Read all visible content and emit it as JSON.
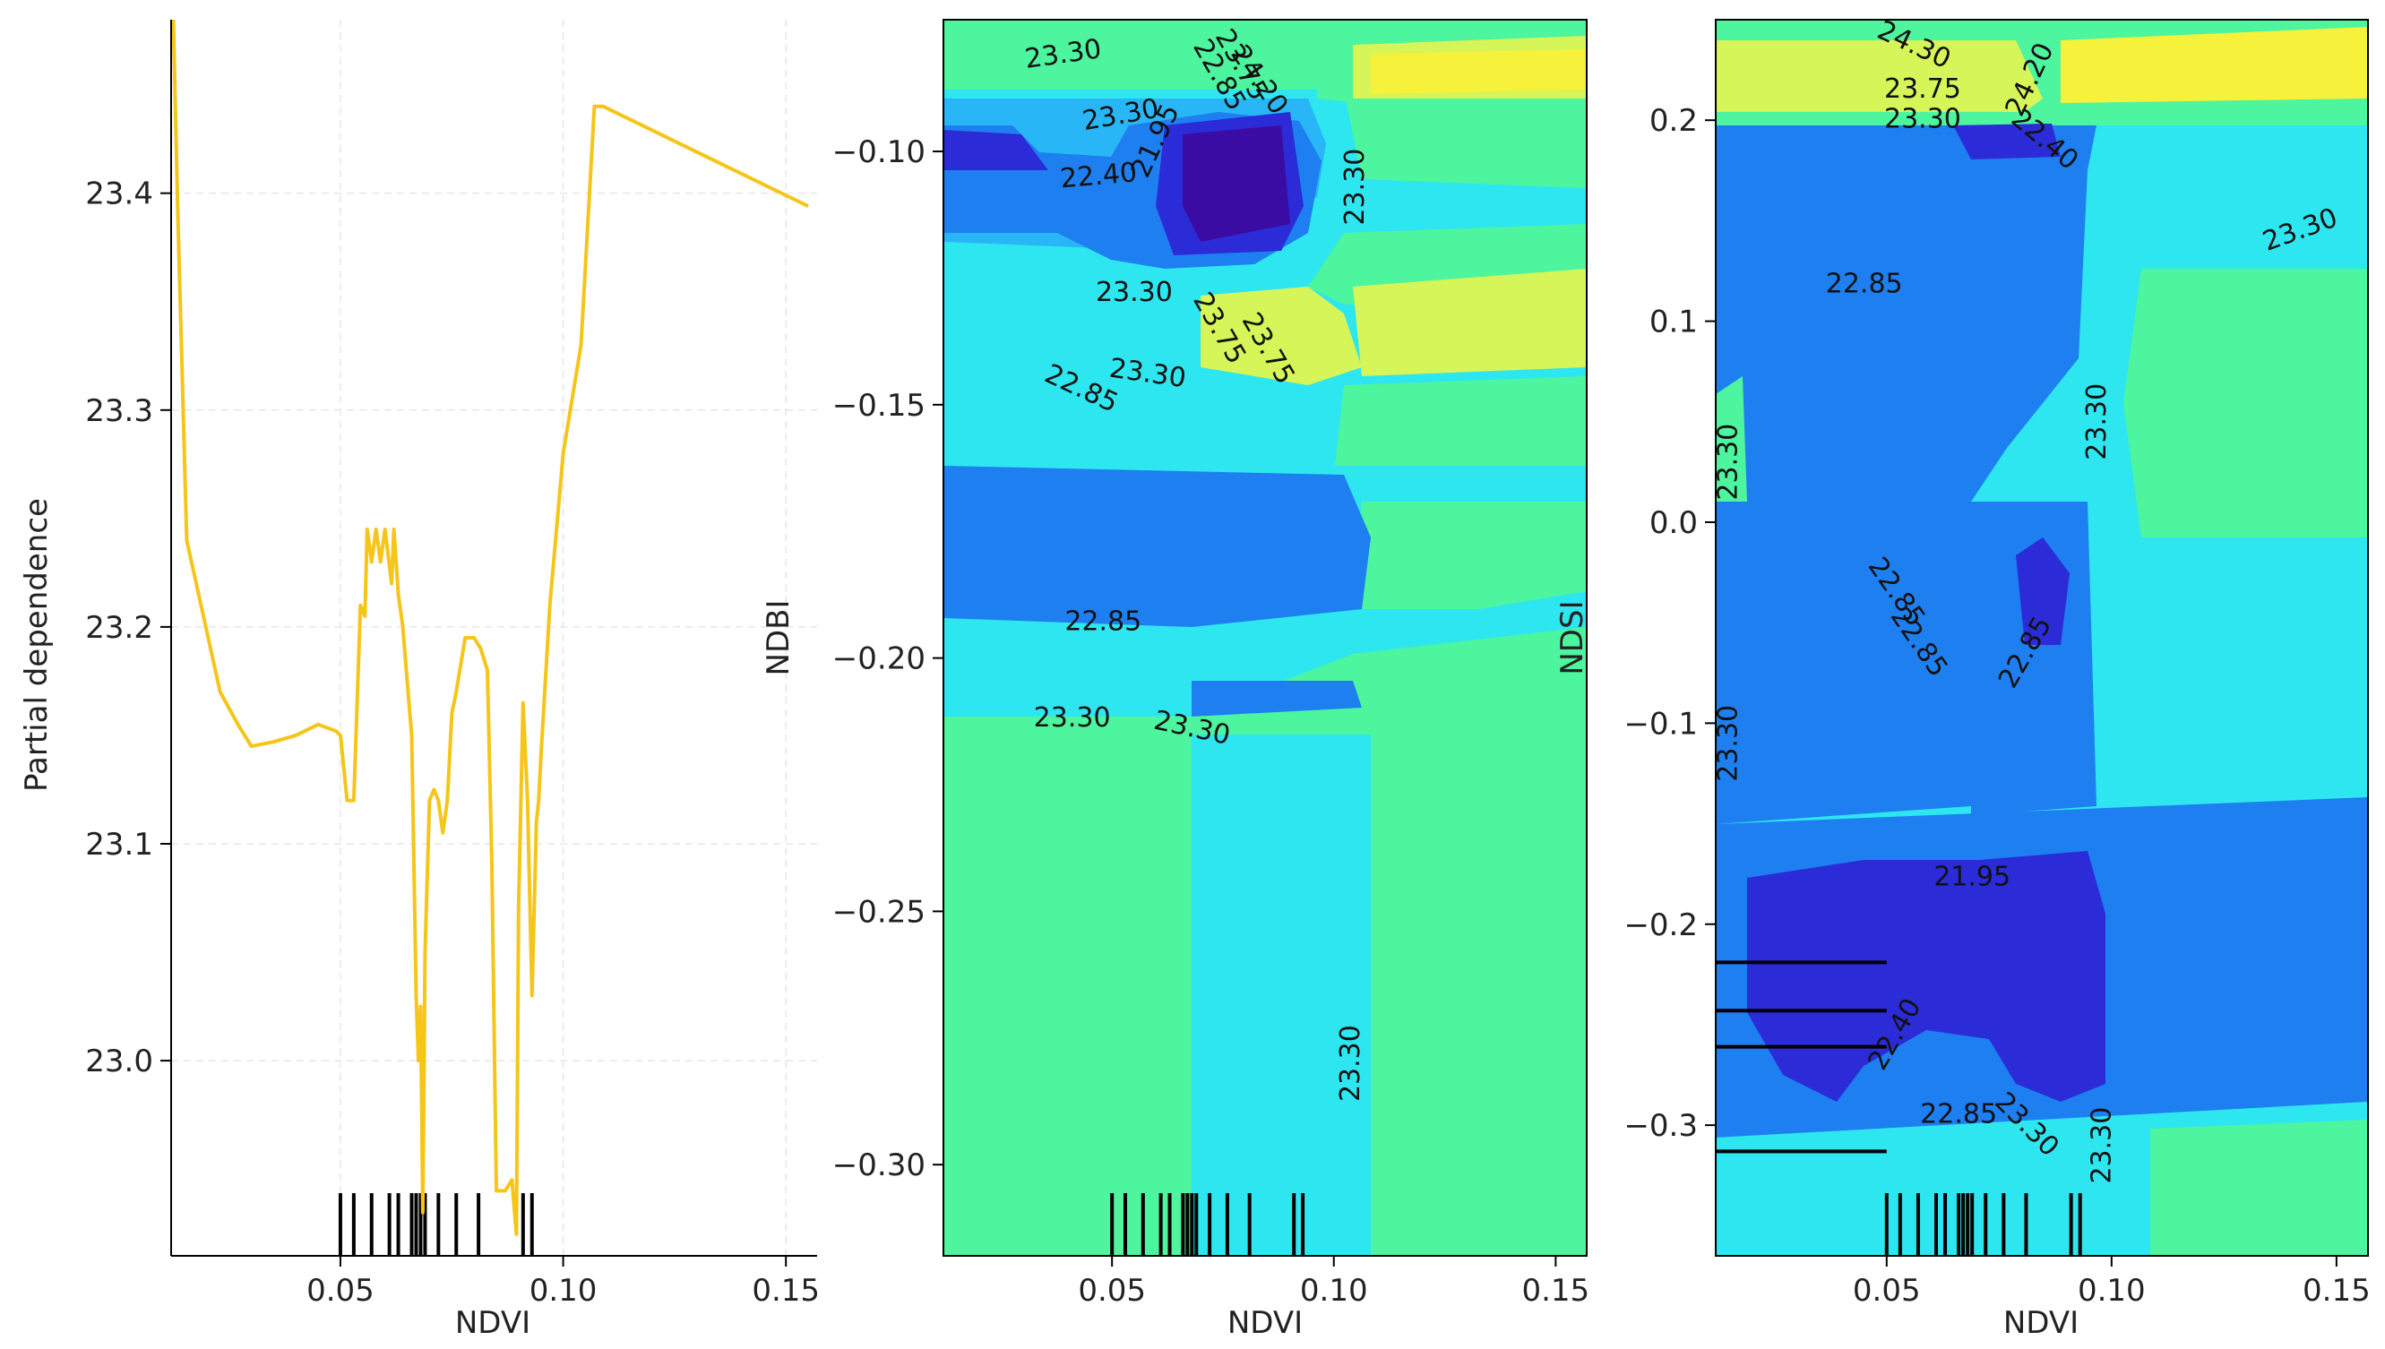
{
  "chart_data": [
    {
      "type": "line",
      "xlabel": "NDVI",
      "ylabel": "Partial dependence",
      "xlim": [
        0.012,
        0.157
      ],
      "ylim": [
        22.91,
        23.48
      ],
      "xticks": [
        0.05,
        0.1,
        0.15
      ],
      "xtick_labels": [
        "0.05",
        "0.10",
        "0.15"
      ],
      "yticks": [
        23.0,
        23.1,
        23.2,
        23.3,
        23.4
      ],
      "ytick_labels": [
        "23.0",
        "23.1",
        "23.2",
        "23.3",
        "23.4"
      ],
      "grid": true,
      "line_color": "#f5c518",
      "x": [
        0.0125,
        0.0135,
        0.0155,
        0.023,
        0.027,
        0.03,
        0.035,
        0.04,
        0.045,
        0.049,
        0.05,
        0.0515,
        0.053,
        0.0545,
        0.0555,
        0.056,
        0.057,
        0.058,
        0.059,
        0.06,
        0.0615,
        0.062,
        0.0625,
        0.063,
        0.064,
        0.065,
        0.066,
        0.067,
        0.0675,
        0.068,
        0.0685,
        0.069,
        0.07,
        0.071,
        0.072,
        0.073,
        0.074,
        0.075,
        0.076,
        0.078,
        0.08,
        0.0815,
        0.083,
        0.084,
        0.085,
        0.087,
        0.0885,
        0.0895,
        0.09,
        0.091,
        0.092,
        0.093,
        0.094,
        0.0945,
        0.095,
        0.097,
        0.1,
        0.104,
        0.107,
        0.109,
        0.155
      ],
      "y": [
        23.48,
        23.39,
        23.24,
        23.17,
        23.155,
        23.145,
        23.147,
        23.15,
        23.155,
        23.152,
        23.15,
        23.12,
        23.12,
        23.21,
        23.205,
        23.245,
        23.23,
        23.245,
        23.23,
        23.245,
        23.22,
        23.245,
        23.23,
        23.215,
        23.2,
        23.175,
        23.15,
        23.03,
        23.0,
        23.025,
        22.93,
        23.05,
        23.12,
        23.125,
        23.12,
        23.105,
        23.12,
        23.16,
        23.17,
        23.195,
        23.195,
        23.19,
        23.18,
        23.09,
        22.94,
        22.94,
        22.945,
        22.92,
        23.07,
        23.165,
        23.12,
        23.03,
        23.11,
        23.12,
        23.14,
        23.21,
        23.28,
        23.33,
        23.44,
        23.44,
        23.394
      ],
      "rug_x": [
        0.05,
        0.053,
        0.057,
        0.061,
        0.063,
        0.066,
        0.067,
        0.068,
        0.069,
        0.072,
        0.076,
        0.081,
        0.091,
        0.093
      ]
    },
    {
      "type": "heatmap",
      "xlabel": "NDVI",
      "ylabel": "NDBI",
      "xlim": [
        0.012,
        0.157
      ],
      "ylim": [
        -0.318,
        -0.074
      ],
      "xticks": [
        0.05,
        0.1,
        0.15
      ],
      "xtick_labels": [
        "0.05",
        "0.10",
        "0.15"
      ],
      "yticks": [
        -0.1,
        -0.15,
        -0.2,
        -0.25,
        -0.3
      ],
      "ytick_labels": [
        "−0.10",
        "−0.15",
        "−0.20",
        "−0.25",
        "−0.30"
      ],
      "contour_labels": [
        {
          "text": "23.30",
          "x": 0.039,
          "y": -0.081,
          "angle": -8
        },
        {
          "text": "24.20",
          "x": 0.083,
          "y": -0.086,
          "angle": 55
        },
        {
          "text": "23.75",
          "x": 0.079,
          "y": -0.083,
          "angle": 60
        },
        {
          "text": "22.85",
          "x": 0.074,
          "y": -0.085,
          "angle": 60
        },
        {
          "text": "23.30",
          "x": 0.052,
          "y": -0.093,
          "angle": -10
        },
        {
          "text": "21.95",
          "x": 0.06,
          "y": -0.098,
          "angle": -65
        },
        {
          "text": "22.40",
          "x": 0.047,
          "y": -0.105,
          "angle": -5
        },
        {
          "text": "23.30",
          "x": 0.105,
          "y": -0.107,
          "angle": -90
        },
        {
          "text": "23.30",
          "x": 0.055,
          "y": -0.128,
          "angle": 0
        },
        {
          "text": "23.75",
          "x": 0.085,
          "y": -0.139,
          "angle": 60
        },
        {
          "text": "23.75",
          "x": 0.074,
          "y": -0.135,
          "angle": 60
        },
        {
          "text": "23.30",
          "x": 0.058,
          "y": -0.144,
          "angle": 8
        },
        {
          "text": "22.85",
          "x": 0.043,
          "y": -0.147,
          "angle": 25
        },
        {
          "text": "22.85",
          "x": 0.048,
          "y": -0.193,
          "angle": 0
        },
        {
          "text": "23.30",
          "x": 0.041,
          "y": -0.212,
          "angle": 0
        },
        {
          "text": "23.30",
          "x": 0.068,
          "y": -0.214,
          "angle": 12
        },
        {
          "text": "23.30",
          "x": 0.104,
          "y": -0.28,
          "angle": -90
        }
      ],
      "rug_x": [
        0.05,
        0.053,
        0.057,
        0.061,
        0.063,
        0.066,
        0.067,
        0.068,
        0.069,
        0.072,
        0.076,
        0.081,
        0.091,
        0.093
      ],
      "colormap": [
        "#3a0ca3",
        "#2b2bd8",
        "#1e7ff0",
        "#29b6f6",
        "#2ee6f0",
        "#4df59e",
        "#8ef57b",
        "#d6f558",
        "#f6f13a"
      ]
    },
    {
      "type": "heatmap",
      "xlabel": "NDVI",
      "ylabel": "NDSI",
      "xlim": [
        0.012,
        0.157
      ],
      "ylim": [
        -0.365,
        0.25
      ],
      "xticks": [
        0.05,
        0.1,
        0.15
      ],
      "xtick_labels": [
        "0.05",
        "0.10",
        "0.15"
      ],
      "yticks": [
        0.2,
        0.1,
        0.0,
        -0.1,
        -0.2,
        -0.3
      ],
      "ytick_labels": [
        "0.2",
        "0.1",
        "0.0",
        "−0.1",
        "−0.2",
        "−0.3"
      ],
      "contour_labels": [
        {
          "text": "24.30",
          "x": 0.056,
          "y": 0.237,
          "angle": 25
        },
        {
          "text": "23.75",
          "x": 0.058,
          "y": 0.215,
          "angle": 0
        },
        {
          "text": "23.30",
          "x": 0.058,
          "y": 0.2,
          "angle": 0
        },
        {
          "text": "24.20",
          "x": 0.082,
          "y": 0.22,
          "angle": -65
        },
        {
          "text": "22.40",
          "x": 0.085,
          "y": 0.19,
          "angle": 40
        },
        {
          "text": "23.30",
          "x": 0.142,
          "y": 0.145,
          "angle": -20
        },
        {
          "text": "22.85",
          "x": 0.045,
          "y": 0.118,
          "angle": 0
        },
        {
          "text": "23.30",
          "x": 0.097,
          "y": 0.05,
          "angle": -90
        },
        {
          "text": "23.30",
          "x": 0.015,
          "y": 0.03,
          "angle": -90
        },
        {
          "text": "22.85",
          "x": 0.052,
          "y": -0.035,
          "angle": 55
        },
        {
          "text": "22.85",
          "x": 0.057,
          "y": -0.06,
          "angle": 55
        },
        {
          "text": "22.85",
          "x": 0.081,
          "y": -0.065,
          "angle": -60
        },
        {
          "text": "23.30",
          "x": 0.015,
          "y": -0.11,
          "angle": -90
        },
        {
          "text": "21.95",
          "x": 0.069,
          "y": -0.177,
          "angle": 0
        },
        {
          "text": "22.40",
          "x": 0.052,
          "y": -0.255,
          "angle": -60
        },
        {
          "text": "22.85",
          "x": 0.066,
          "y": -0.295,
          "angle": 0
        },
        {
          "text": "23.30",
          "x": 0.081,
          "y": -0.3,
          "angle": 45
        },
        {
          "text": "23.30",
          "x": 0.098,
          "y": -0.31,
          "angle": -90
        }
      ],
      "rug_x": [
        0.05,
        0.053,
        0.057,
        0.061,
        0.063,
        0.066,
        0.067,
        0.068,
        0.069,
        0.072,
        0.076,
        0.081,
        0.091,
        0.093
      ],
      "rug_y": [
        -0.219,
        -0.243,
        -0.261,
        -0.313
      ],
      "colormap": [
        "#3a0ca3",
        "#2b2bd8",
        "#1e7ff0",
        "#29b6f6",
        "#2ee6f0",
        "#4df59e",
        "#8ef57b",
        "#d6f558",
        "#f6f13a"
      ]
    }
  ]
}
